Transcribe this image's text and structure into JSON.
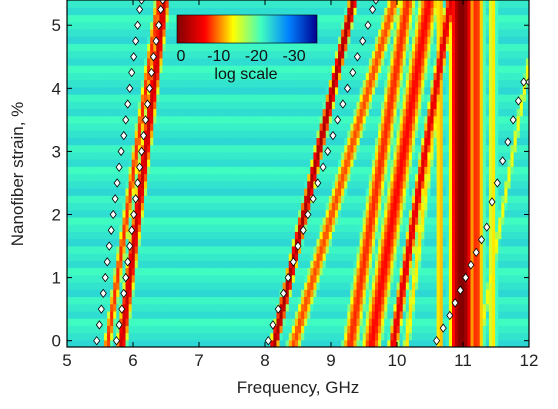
{
  "chart_data": {
    "type": "heatmap",
    "xlabel": "Frequency, GHz",
    "ylabel": "Nanofiber strain, %",
    "xlim": [
      5,
      12
    ],
    "ylim": [
      -0.1,
      5.4
    ],
    "x_ticks": [
      "5",
      "6",
      "7",
      "8",
      "9",
      "10",
      "11",
      "12"
    ],
    "y_ticks": [
      "0",
      "1",
      "2",
      "3",
      "4",
      "5"
    ],
    "colorbar": {
      "ticks": [
        "0",
        "-10",
        "-20",
        "-30"
      ],
      "label": "log scale",
      "range": [
        0,
        -35
      ],
      "colors": [
        "#800000",
        "#ff0000",
        "#ffff00",
        "#40ffc0",
        "#0080ff",
        "#00008f"
      ]
    },
    "background_level": -22,
    "bands": [
      {
        "f0": 5.62,
        "slope": 0.143,
        "width": 0.05,
        "level": -8
      },
      {
        "f0": 5.83,
        "slope": 0.12,
        "width": 0.06,
        "level": -4
      },
      {
        "f0": 8.15,
        "slope": 0.22,
        "width": 0.05,
        "level": -2
      },
      {
        "f0": 8.45,
        "slope": 0.28,
        "width": 0.09,
        "level": -9
      },
      {
        "f0": 9.3,
        "slope": 0.16,
        "width": 0.1,
        "level": -8
      },
      {
        "f0": 9.62,
        "slope": 0.16,
        "width": 0.12,
        "level": -7
      },
      {
        "f0": 9.95,
        "slope": 0.16,
        "width": 0.06,
        "level": -5
      },
      {
        "f0": 10.15,
        "slope": 0.12,
        "width": 0.05,
        "level": -13
      },
      {
        "f0": 10.65,
        "slope": 0.0,
        "width": 0.05,
        "level": -11
      },
      {
        "f0": 10.98,
        "slope": 0.0,
        "width": 0.13,
        "level": 0
      },
      {
        "f0": 11.2,
        "slope": 0.0,
        "width": 0.1,
        "level": -8
      },
      {
        "f0": 11.45,
        "slope": 0.0,
        "width": 0.06,
        "level": -13
      },
      {
        "f0": 11.25,
        "slope": 0.17,
        "width": 0.04,
        "level": -14
      }
    ],
    "series": [
      {
        "x": [
          5.45,
          5.49,
          5.52,
          5.55,
          5.58,
          5.61,
          5.64,
          5.67,
          5.7,
          5.73,
          5.76,
          5.79,
          5.82,
          5.86,
          5.89,
          5.92,
          5.95,
          5.98,
          6.01,
          6.04,
          6.07,
          6.1,
          6.13
        ],
        "y": [
          0,
          0.25,
          0.5,
          0.75,
          1,
          1.25,
          1.5,
          1.75,
          2,
          2.25,
          2.5,
          2.75,
          3,
          3.25,
          3.5,
          3.75,
          4,
          4.25,
          4.5,
          4.75,
          5,
          5.25,
          5.4
        ]
      },
      {
        "x": [
          5.75,
          5.79,
          5.83,
          5.86,
          5.89,
          5.92,
          5.95,
          5.98,
          6.01,
          6.04,
          6.07,
          6.1,
          6.13,
          6.16,
          6.19,
          6.22,
          6.25,
          6.28,
          6.31,
          6.35,
          6.39,
          6.42,
          6.45
        ],
        "y": [
          0,
          0.25,
          0.5,
          0.75,
          1,
          1.25,
          1.5,
          1.75,
          2,
          2.25,
          2.5,
          2.75,
          3,
          3.25,
          3.5,
          3.75,
          4,
          4.25,
          4.5,
          4.75,
          5,
          5.25,
          5.4
        ]
      },
      {
        "x": [
          8.05,
          8.12,
          8.2,
          8.28,
          8.35,
          8.43,
          8.5,
          8.58,
          8.65,
          8.73,
          8.8,
          8.88,
          8.95,
          9.03,
          9.1,
          9.18,
          9.25,
          9.33,
          9.4,
          9.48,
          9.56,
          9.63,
          9.68
        ],
        "y": [
          0,
          0.25,
          0.5,
          0.75,
          1,
          1.25,
          1.5,
          1.75,
          2,
          2.25,
          2.5,
          2.75,
          3,
          3.25,
          3.5,
          3.75,
          4,
          4.25,
          4.5,
          4.75,
          5,
          5.25,
          5.4
        ]
      },
      {
        "x": [
          10.6,
          10.7,
          10.8,
          10.88,
          10.96,
          11.04,
          11.12,
          11.2,
          11.28,
          11.36,
          11.44,
          11.52,
          11.6,
          11.68,
          11.76,
          11.84,
          11.92,
          12.0
        ],
        "y": [
          0,
          0.2,
          0.4,
          0.6,
          0.8,
          1.0,
          1.2,
          1.4,
          1.6,
          1.8,
          2.2,
          2.5,
          2.85,
          3.15,
          3.5,
          3.8,
          4.1,
          4.1
        ]
      }
    ]
  }
}
